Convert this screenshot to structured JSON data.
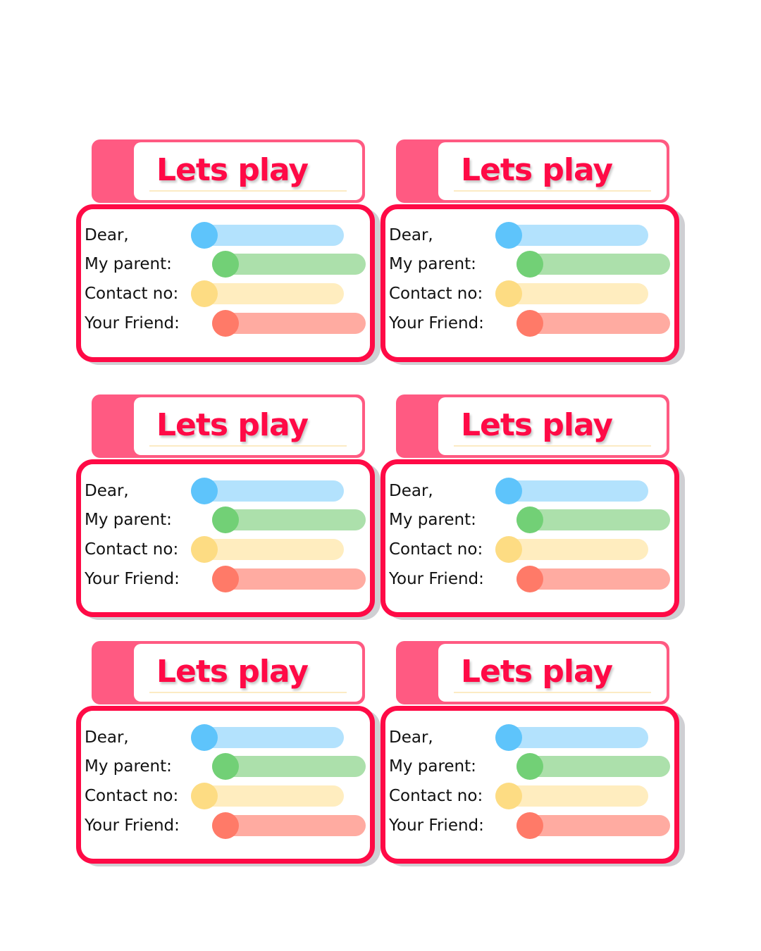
{
  "cards": [
    {
      "title": "Lets play",
      "fields": [
        {
          "label": "Dear,"
        },
        {
          "label": "My parent:"
        },
        {
          "label": "Contact no:"
        },
        {
          "label": "Your Friend:"
        }
      ]
    },
    {
      "title": "Lets play",
      "fields": [
        {
          "label": "Dear,"
        },
        {
          "label": "My parent:"
        },
        {
          "label": "Contact no:"
        },
        {
          "label": "Your Friend:"
        }
      ]
    },
    {
      "title": "Lets play",
      "fields": [
        {
          "label": "Dear,"
        },
        {
          "label": "My parent:"
        },
        {
          "label": "Contact no:"
        },
        {
          "label": "Your Friend:"
        }
      ]
    },
    {
      "title": "Lets play",
      "fields": [
        {
          "label": "Dear,"
        },
        {
          "label": "My parent:"
        },
        {
          "label": "Contact no:"
        },
        {
          "label": "Your Friend:"
        }
      ]
    },
    {
      "title": "Lets play",
      "fields": [
        {
          "label": "Dear,"
        },
        {
          "label": "My parent:"
        },
        {
          "label": "Contact no:"
        },
        {
          "label": "Your Friend:"
        }
      ]
    },
    {
      "title": "Lets play",
      "fields": [
        {
          "label": "Dear,"
        },
        {
          "label": "My parent:"
        },
        {
          "label": "Contact no:"
        },
        {
          "label": "Your Friend:"
        }
      ]
    }
  ],
  "colors": {
    "accent": "#ff0a46",
    "tab": "#ff5a82",
    "blue_bar": "#b3e2fd",
    "blue_dot": "#5ec4fb",
    "green_bar": "#ace0ab",
    "green_dot": "#72d076",
    "yellow_bar": "#ffedbf",
    "yellow_dot": "#fddc83",
    "red_bar": "#ffaba1",
    "red_dot": "#ff7a68"
  }
}
